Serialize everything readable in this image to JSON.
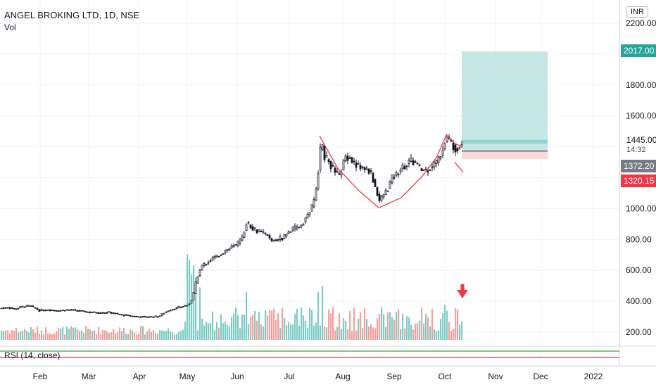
{
  "header": {
    "symbol": "ANGEL BROKING LTD, 1D, NSE",
    "volume_label": "Vol",
    "currency": "INR"
  },
  "rsi": {
    "label": "RSI (14, close)"
  },
  "price_axis": {
    "current_price": "1445.00",
    "countdown": "14:32",
    "target_label": "2017.00",
    "entry_label": "1372.20",
    "stop_label": "1320.15"
  },
  "colors": {
    "up_volume": "#7ecdc4",
    "down_volume": "#f4a09c",
    "target_fill": "#b2dfdb",
    "stop_fill": "#fbd5d3",
    "target_tag": "#26a69a",
    "entry_tag": "#787b86",
    "stop_tag": "#f23645",
    "curve": "#f23645",
    "arrow": "#f23645",
    "rsi_upper": "#43a047",
    "rsi_lower": "#e53935"
  },
  "chart_data": {
    "type": "candlestick",
    "title": "ANGEL BROKING LTD, 1D, NSE",
    "ylim": [
      130,
      2230
    ],
    "y_ticks": [
      {
        "value": 200,
        "label": "200.00"
      },
      {
        "value": 400,
        "label": "400.00"
      },
      {
        "value": 600,
        "label": "600.00"
      },
      {
        "value": 800,
        "label": "800.00"
      },
      {
        "value": 1000,
        "label": "1000.00"
      },
      {
        "value": 1600,
        "label": "1600.00"
      },
      {
        "value": 1800,
        "label": "1800.00"
      },
      {
        "value": 2200,
        "label": "2200.00"
      }
    ],
    "x_ticks": [
      "Feb",
      "Mar",
      "Apr",
      "May",
      "Jun",
      "Jul",
      "Aug",
      "Sep",
      "Oct",
      "Nov",
      "Dec",
      "2022"
    ],
    "price_path": [
      [
        0,
        355
      ],
      [
        10,
        360
      ],
      [
        20,
        350
      ],
      [
        30,
        365
      ],
      [
        42,
        370
      ],
      [
        55,
        340
      ],
      [
        70,
        345
      ],
      [
        80,
        338
      ],
      [
        95,
        345
      ],
      [
        110,
        338
      ],
      [
        125,
        330
      ],
      [
        140,
        325
      ],
      [
        155,
        328
      ],
      [
        165,
        318
      ],
      [
        175,
        310
      ],
      [
        185,
        305
      ],
      [
        195,
        300
      ],
      [
        210,
        298
      ],
      [
        225,
        302
      ],
      [
        232,
        325
      ],
      [
        240,
        345
      ],
      [
        250,
        355
      ],
      [
        262,
        372
      ],
      [
        268,
        385
      ],
      [
        272,
        415
      ],
      [
        275,
        470
      ],
      [
        278,
        540
      ],
      [
        282,
        590
      ],
      [
        286,
        630
      ],
      [
        293,
        650
      ],
      [
        302,
        680
      ],
      [
        311,
        700
      ],
      [
        320,
        730
      ],
      [
        326,
        745
      ],
      [
        335,
        765
      ],
      [
        343,
        810
      ],
      [
        349,
        910
      ],
      [
        354,
        890
      ],
      [
        362,
        860
      ],
      [
        370,
        845
      ],
      [
        378,
        830
      ],
      [
        384,
        790
      ],
      [
        392,
        800
      ],
      [
        400,
        810
      ],
      [
        408,
        845
      ],
      [
        416,
        870
      ],
      [
        423,
        880
      ],
      [
        429,
        905
      ],
      [
        435,
        950
      ],
      [
        441,
        1000
      ],
      [
        446,
        1060
      ],
      [
        450,
        1200
      ],
      [
        453,
        1340
      ],
      [
        456,
        1450
      ],
      [
        459,
        1340
      ],
      [
        464,
        1320
      ],
      [
        470,
        1270
      ],
      [
        476,
        1230
      ],
      [
        482,
        1210
      ],
      [
        489,
        1340
      ],
      [
        495,
        1330
      ],
      [
        503,
        1290
      ],
      [
        510,
        1270
      ],
      [
        518,
        1255
      ],
      [
        525,
        1240
      ],
      [
        532,
        1140
      ],
      [
        538,
        1050
      ],
      [
        544,
        1090
      ],
      [
        550,
        1130
      ],
      [
        556,
        1200
      ],
      [
        562,
        1220
      ],
      [
        568,
        1260
      ],
      [
        575,
        1280
      ],
      [
        582,
        1310
      ],
      [
        590,
        1290
      ],
      [
        598,
        1250
      ],
      [
        606,
        1250
      ],
      [
        614,
        1280
      ],
      [
        621,
        1310
      ],
      [
        626,
        1360
      ],
      [
        630,
        1420
      ],
      [
        634,
        1460
      ],
      [
        638,
        1440
      ],
      [
        642,
        1410
      ],
      [
        646,
        1390
      ],
      [
        650,
        1400
      ],
      [
        654,
        1415
      ],
      [
        657,
        1445
      ]
    ],
    "volume_base_y": 483,
    "volume_max_px": 124,
    "cup_points": [
      [
        454,
        1470
      ],
      [
        480,
        1260
      ],
      [
        510,
        1115
      ],
      [
        538,
        1005
      ],
      [
        570,
        1070
      ],
      [
        600,
        1210
      ],
      [
        620,
        1330
      ],
      [
        634,
        1475
      ],
      [
        647,
        1420
      ],
      [
        657,
        1400
      ]
    ],
    "handle_line": [
      [
        646,
        1300
      ],
      [
        658,
        1235
      ]
    ],
    "trade": {
      "x_start": 656,
      "x_end": 778,
      "target": 2017.0,
      "entry": 1372.2,
      "stop": 1320.15,
      "label_top_band": 1445.0,
      "label_mid_band": 1420.0
    },
    "arrow_x": 657
  }
}
